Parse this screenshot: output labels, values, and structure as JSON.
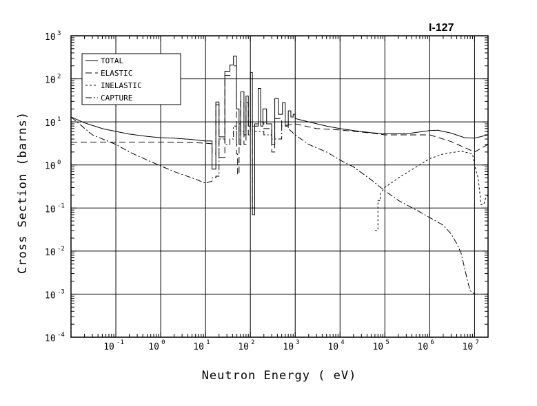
{
  "chart_data": {
    "type": "line",
    "title": "I-127",
    "xlabel": "Neutron Energy ( eV)",
    "ylabel": "Cross Section (barns)",
    "x_scale": "log",
    "y_scale": "log",
    "xlim": [
      0.01,
      20000000
    ],
    "ylim": [
      0.0001,
      1000
    ],
    "grid": true,
    "legend_position": "top-left",
    "x_ticks": [
      {
        "base": "10",
        "exp": "-1"
      },
      {
        "base": "10",
        "exp": "0"
      },
      {
        "base": "10",
        "exp": "1"
      },
      {
        "base": "10",
        "exp": "2"
      },
      {
        "base": "10",
        "exp": "3"
      },
      {
        "base": "10",
        "exp": "4"
      },
      {
        "base": "10",
        "exp": "5"
      },
      {
        "base": "10",
        "exp": "6"
      },
      {
        "base": "10",
        "exp": "7"
      }
    ],
    "y_ticks": [
      {
        "base": "10",
        "exp": "3"
      },
      {
        "base": "10",
        "exp": "2"
      },
      {
        "base": "10",
        "exp": "1"
      },
      {
        "base": "10",
        "exp": "0"
      },
      {
        "base": "10",
        "exp": "-1"
      },
      {
        "base": "10",
        "exp": "-2"
      },
      {
        "base": "10",
        "exp": "-3"
      },
      {
        "base": "10",
        "exp": "-4"
      }
    ],
    "series": [
      {
        "name": "TOTAL",
        "dash": "",
        "points": [
          [
            0.01,
            13
          ],
          [
            0.02,
            9.5
          ],
          [
            0.05,
            7
          ],
          [
            0.1,
            6
          ],
          [
            0.2,
            5.2
          ],
          [
            0.5,
            4.6
          ],
          [
            1,
            4.3
          ],
          [
            2,
            4.2
          ],
          [
            5,
            3.9
          ],
          [
            10,
            3.6
          ],
          [
            14,
            3.6
          ],
          [
            14,
            0.8
          ],
          [
            17,
            0.8
          ],
          [
            17,
            29
          ],
          [
            20,
            29
          ],
          [
            20,
            4.5
          ],
          [
            27,
            4.5
          ],
          [
            27,
            150
          ],
          [
            35,
            150
          ],
          [
            35,
            210
          ],
          [
            42,
            210
          ],
          [
            42,
            340
          ],
          [
            49,
            340
          ],
          [
            49,
            20
          ],
          [
            56,
            20
          ],
          [
            56,
            3
          ],
          [
            61,
            3
          ],
          [
            61,
            50
          ],
          [
            72,
            50
          ],
          [
            72,
            5
          ],
          [
            80,
            5
          ],
          [
            80,
            40
          ],
          [
            90,
            40
          ],
          [
            90,
            8
          ],
          [
            100,
            8
          ],
          [
            100,
            140
          ],
          [
            111,
            140
          ],
          [
            111,
            0.07
          ],
          [
            125,
            0.07
          ],
          [
            125,
            9
          ],
          [
            150,
            9
          ],
          [
            150,
            60
          ],
          [
            170,
            60
          ],
          [
            170,
            8
          ],
          [
            190,
            8
          ],
          [
            190,
            20
          ],
          [
            230,
            20
          ],
          [
            230,
            9
          ],
          [
            300,
            9
          ],
          [
            300,
            3
          ],
          [
            350,
            3
          ],
          [
            350,
            35
          ],
          [
            420,
            35
          ],
          [
            420,
            15
          ],
          [
            520,
            15
          ],
          [
            520,
            28
          ],
          [
            600,
            28
          ],
          [
            600,
            8
          ],
          [
            700,
            8
          ],
          [
            700,
            18
          ],
          [
            800,
            18
          ],
          [
            800,
            13
          ],
          [
            900,
            13
          ],
          [
            900,
            15
          ],
          [
            1000,
            15
          ],
          [
            1000,
            12
          ],
          [
            2000,
            10
          ],
          [
            5000,
            8
          ],
          [
            10000,
            7
          ],
          [
            20000,
            6.3
          ],
          [
            50000,
            5.6
          ],
          [
            100000,
            5.3
          ],
          [
            300000,
            5.3
          ],
          [
            1000000,
            6.3
          ],
          [
            1500000,
            6.4
          ],
          [
            3000000,
            5.5
          ],
          [
            6000000,
            4.3
          ],
          [
            10000000,
            4.2
          ],
          [
            20000000,
            5
          ]
        ]
      },
      {
        "name": "ELASTIC",
        "dash": "9,5",
        "points": [
          [
            0.01,
            3.4
          ],
          [
            0.1,
            3.4
          ],
          [
            1,
            3.4
          ],
          [
            5,
            3.3
          ],
          [
            10,
            3.2
          ],
          [
            14,
            3.1
          ],
          [
            14,
            1.8
          ],
          [
            17,
            1.8
          ],
          [
            17,
            25
          ],
          [
            20,
            25
          ],
          [
            20,
            1.5
          ],
          [
            27,
            1.5
          ],
          [
            27,
            120
          ],
          [
            35,
            120
          ],
          [
            35,
            200
          ],
          [
            42,
            200
          ],
          [
            42,
            200
          ],
          [
            49,
            200
          ],
          [
            49,
            1.8
          ],
          [
            52,
            1.8
          ],
          [
            52,
            0.6
          ],
          [
            56,
            0.6
          ],
          [
            56,
            2.5
          ],
          [
            61,
            2.5
          ],
          [
            61,
            30
          ],
          [
            72,
            30
          ],
          [
            72,
            3
          ],
          [
            80,
            3
          ],
          [
            80,
            28
          ],
          [
            90,
            28
          ],
          [
            90,
            5
          ],
          [
            100,
            5
          ],
          [
            100,
            10
          ],
          [
            111,
            10
          ],
          [
            111,
            0.1
          ],
          [
            125,
            0.1
          ],
          [
            125,
            8
          ],
          [
            150,
            8
          ],
          [
            150,
            10
          ],
          [
            200,
            10
          ],
          [
            200,
            7
          ],
          [
            300,
            7
          ],
          [
            300,
            2
          ],
          [
            350,
            2
          ],
          [
            350,
            12
          ],
          [
            500,
            12
          ],
          [
            500,
            8
          ],
          [
            1000,
            9
          ],
          [
            3000,
            7
          ],
          [
            10000,
            6.5
          ],
          [
            50000,
            5.5
          ],
          [
            100000,
            5
          ],
          [
            300000,
            5
          ],
          [
            1000000,
            5
          ],
          [
            3000000,
            3.5
          ],
          [
            10000000,
            2
          ],
          [
            20000000,
            3
          ]
        ]
      },
      {
        "name": "INELASTIC",
        "dash": "3,3",
        "points": [
          [
            60000,
            0.03
          ],
          [
            70000,
            0.03
          ],
          [
            70000,
            0.15
          ],
          [
            80000,
            0.15
          ],
          [
            80000,
            0.22
          ],
          [
            100000,
            0.3
          ],
          [
            200000,
            0.5
          ],
          [
            500000,
            0.9
          ],
          [
            1000000,
            1.4
          ],
          [
            2000000,
            1.8
          ],
          [
            5000000,
            2.1
          ],
          [
            9000000,
            1.8
          ],
          [
            10000000,
            1
          ],
          [
            12000000,
            0.5
          ],
          [
            14000000,
            0.12
          ],
          [
            16000000,
            0.12
          ],
          [
            18000000,
            0.18
          ],
          [
            20000000,
            0.2
          ]
        ]
      },
      {
        "name": "CAPTURE",
        "dash": "9,3,2,3",
        "points": [
          [
            0.01,
            13
          ],
          [
            0.03,
            5
          ],
          [
            0.1,
            3
          ],
          [
            0.2,
            2
          ],
          [
            0.5,
            1.3
          ],
          [
            1,
            0.95
          ],
          [
            2,
            0.7
          ],
          [
            5,
            0.5
          ],
          [
            10,
            0.38
          ],
          [
            14,
            0.42
          ],
          [
            14,
            0.5
          ],
          [
            17,
            0.5
          ],
          [
            17,
            0.55
          ],
          [
            20,
            0.55
          ],
          [
            20,
            4
          ],
          [
            27,
            4
          ],
          [
            27,
            3
          ],
          [
            35,
            3
          ],
          [
            35,
            4
          ],
          [
            42,
            4
          ],
          [
            42,
            8
          ],
          [
            49,
            8
          ],
          [
            49,
            3
          ],
          [
            56,
            3
          ],
          [
            56,
            9
          ],
          [
            61,
            9
          ],
          [
            61,
            6
          ],
          [
            80,
            6
          ],
          [
            80,
            10
          ],
          [
            100,
            10
          ],
          [
            100,
            8
          ],
          [
            125,
            8
          ],
          [
            125,
            6
          ],
          [
            200,
            6
          ],
          [
            200,
            5
          ],
          [
            300,
            5
          ],
          [
            300,
            4
          ],
          [
            500,
            4
          ],
          [
            500,
            10
          ],
          [
            700,
            10
          ],
          [
            700,
            7
          ],
          [
            1000,
            5
          ],
          [
            2000,
            3
          ],
          [
            5000,
            2
          ],
          [
            10000,
            1.3
          ],
          [
            20000,
            0.9
          ],
          [
            50000,
            0.45
          ],
          [
            100000,
            0.25
          ],
          [
            200000,
            0.15
          ],
          [
            500000,
            0.09
          ],
          [
            1000000,
            0.06
          ],
          [
            2000000,
            0.04
          ],
          [
            3000000,
            0.025
          ],
          [
            4000000,
            0.015
          ],
          [
            5000000,
            0.009
          ],
          [
            6000000,
            0.004
          ],
          [
            7000000,
            0.002
          ],
          [
            8000000,
            0.0012
          ],
          [
            10000000,
            0.001
          ],
          [
            20000000,
            0.001
          ]
        ]
      }
    ]
  }
}
